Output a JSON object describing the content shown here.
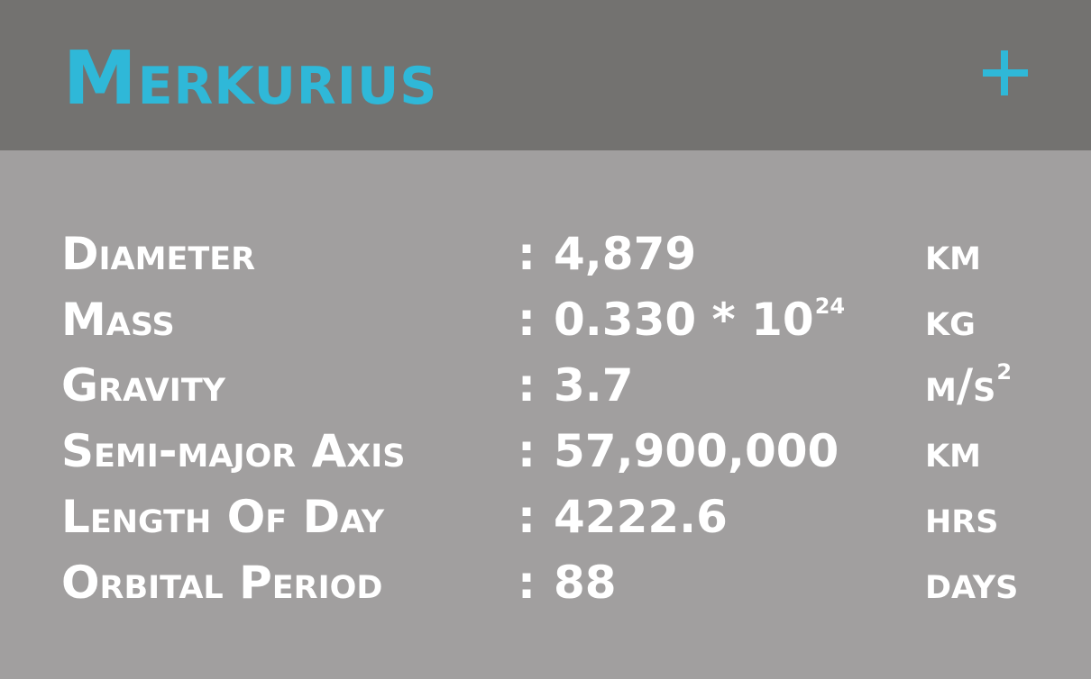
{
  "header": {
    "title": "Merkurius",
    "expand_label": "+"
  },
  "colors": {
    "header_background": "#737270",
    "body_background": "#a19f9f",
    "accent": "#2fb8d8",
    "text": "#ffffff"
  },
  "icons": {
    "expand": "plus-icon"
  },
  "stats": {
    "separator": ":",
    "rows": [
      {
        "label": "Diameter",
        "value": "4,879",
        "value_sup": "",
        "unit": "km",
        "unit_sup": ""
      },
      {
        "label": "Mass",
        "value": "0.330 * 10",
        "value_sup": "24",
        "unit": "kg",
        "unit_sup": ""
      },
      {
        "label": "Gravity",
        "value": "3.7",
        "value_sup": "",
        "unit": "m/s",
        "unit_sup": "2"
      },
      {
        "label": "Semi-major Axis",
        "value": "57,900,000",
        "value_sup": "",
        "unit": "km",
        "unit_sup": ""
      },
      {
        "label": "Length Of Day",
        "value": "4222.6",
        "value_sup": "",
        "unit": "hrs",
        "unit_sup": ""
      },
      {
        "label": "Orbital Period",
        "value": "88",
        "value_sup": "",
        "unit": "days",
        "unit_sup": ""
      }
    ]
  }
}
